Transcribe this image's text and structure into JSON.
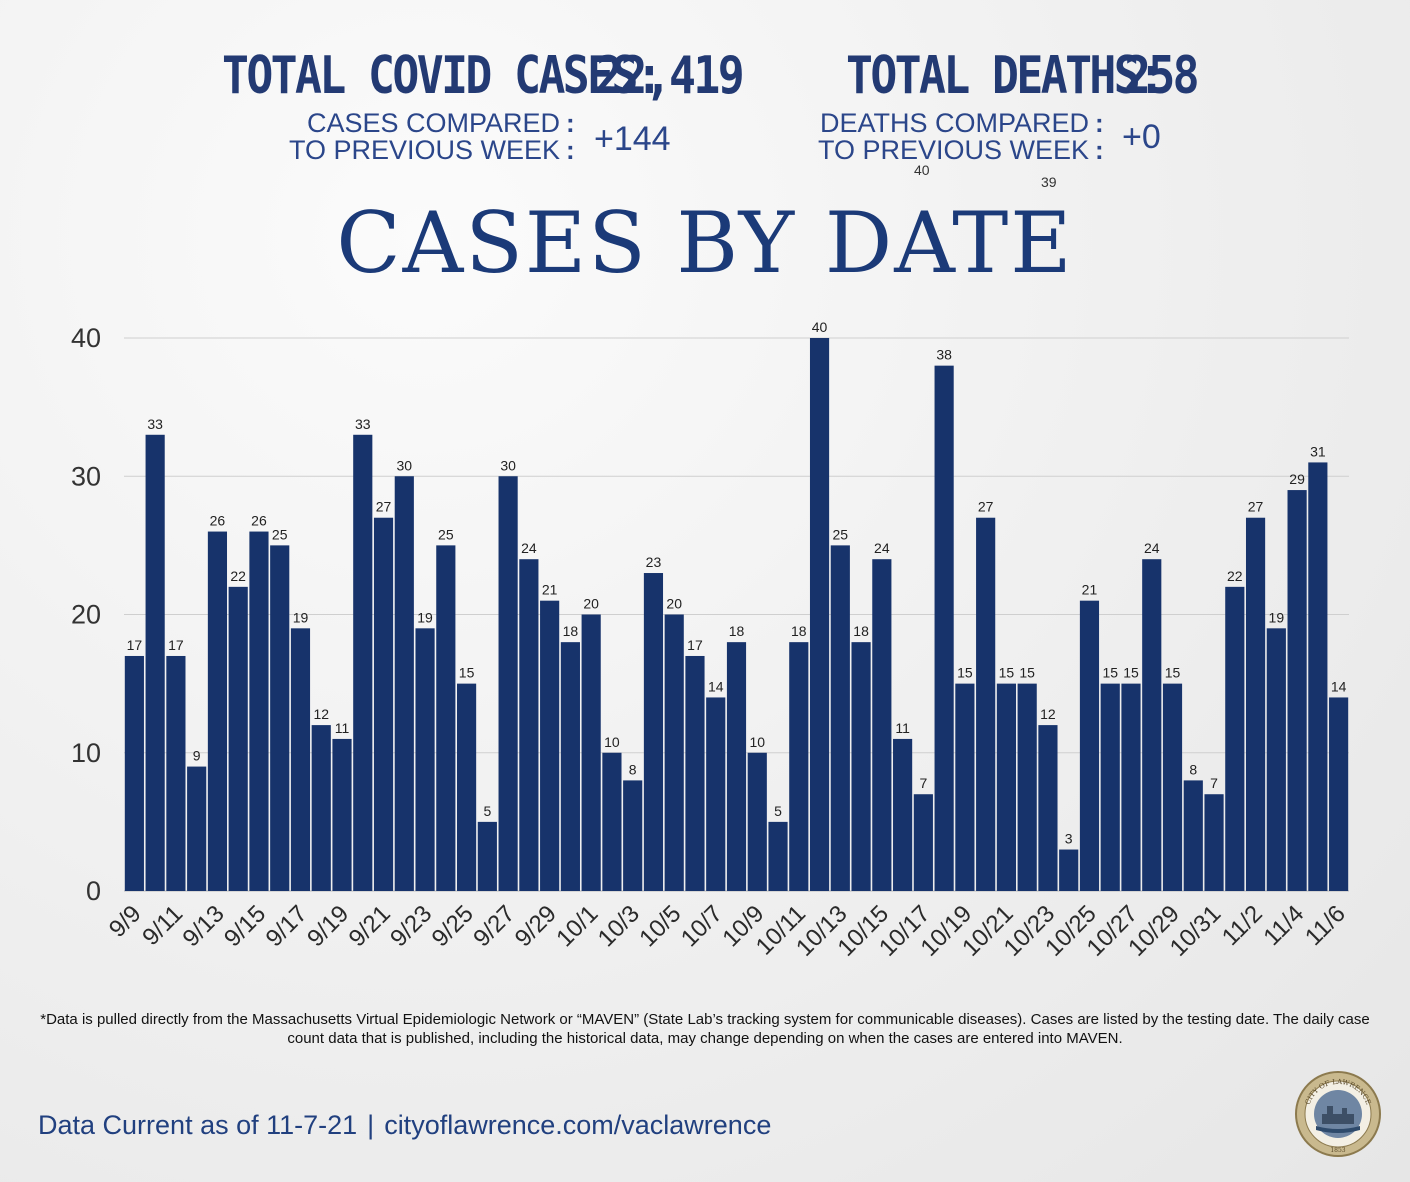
{
  "header": {
    "total_cases_label": "TOTAL COVID CASES:",
    "total_cases_value": "22,419",
    "total_deaths_label": "TOTAL DEATHS:",
    "total_deaths_value": "258",
    "cases_compared_line1": "CASES COMPARED",
    "cases_compared_line2": "TO PREVIOUS WEEK",
    "cases_compared_value": "+144",
    "deaths_compared_line1": "DEATHS COMPARED",
    "deaths_compared_line2": "TO PREVIOUS WEEK",
    "deaths_compared_value": "+0",
    "colon": ":",
    "stray_label_1": "40",
    "stray_label_2": "39"
  },
  "chart_data": {
    "type": "bar",
    "title": "CASES BY DATE",
    "xlabel": "",
    "ylabel": "",
    "ylim": [
      0,
      40
    ],
    "yticks": [
      0,
      10,
      20,
      30,
      40
    ],
    "grid": true,
    "bar_color": "#17336b",
    "categories": [
      "9/9",
      "9/10",
      "9/11",
      "9/12",
      "9/13",
      "9/14",
      "9/15",
      "9/16",
      "9/17",
      "9/18",
      "9/19",
      "9/20",
      "9/21",
      "9/22",
      "9/23",
      "9/24",
      "9/25",
      "9/26",
      "9/27",
      "9/28",
      "9/29",
      "9/30",
      "10/1",
      "10/2",
      "10/3",
      "10/4",
      "10/5",
      "10/6",
      "10/7",
      "10/8",
      "10/9",
      "10/10",
      "10/11",
      "10/12",
      "10/13",
      "10/14",
      "10/15",
      "10/16",
      "10/17",
      "10/18",
      "10/19",
      "10/20",
      "10/21",
      "10/22",
      "10/23",
      "10/24",
      "10/25",
      "10/26",
      "10/27",
      "10/28",
      "10/29",
      "10/30",
      "10/31",
      "11/1",
      "11/2",
      "11/3",
      "11/4",
      "11/5",
      "11/6"
    ],
    "values": [
      17,
      33,
      17,
      9,
      26,
      22,
      26,
      25,
      19,
      12,
      11,
      33,
      27,
      30,
      19,
      25,
      15,
      5,
      30,
      24,
      21,
      18,
      20,
      10,
      8,
      23,
      20,
      17,
      14,
      18,
      10,
      5,
      18,
      40,
      25,
      18,
      24,
      11,
      7,
      38,
      15,
      27,
      15,
      15,
      12,
      3,
      21,
      15,
      15,
      24,
      15,
      8,
      7,
      22,
      27,
      19,
      29,
      31,
      14
    ],
    "tick_labels": [
      "9/9",
      "9/11",
      "9/13",
      "9/15",
      "9/17",
      "9/19",
      "9/21",
      "9/23",
      "9/25",
      "9/27",
      "9/29",
      "10/1",
      "10/3",
      "10/5",
      "10/7",
      "10/9",
      "10/11",
      "10/13",
      "10/15",
      "10/17",
      "10/19",
      "10/21",
      "10/23",
      "10/25",
      "10/27",
      "10/29",
      "10/31",
      "11/2",
      "11/4",
      "11/6"
    ]
  },
  "footnote": "*Data is pulled directly from the Massachusetts Virtual Epidemiologic Network or “MAVEN” (State Lab’s tracking system for communicable diseases). Cases are listed by the testing date. The daily case count data that is published, including the historical data, may change depending on when the cases are entered into MAVEN.",
  "footer": {
    "data_current": "Data Current as of 11-7-21",
    "separator": "|",
    "website": "cityoflawrence.com/vaclawrence"
  },
  "seal": {
    "text_top": "CITY OF LAWRENCE",
    "year": "1853"
  }
}
